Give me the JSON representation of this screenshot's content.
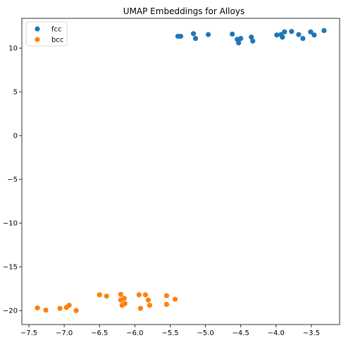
{
  "chart_data": {
    "type": "scatter",
    "title": "UMAP Embeddings for Alloys",
    "xlabel": "",
    "ylabel": "",
    "xlim": [
      -7.6,
      -3.1
    ],
    "ylim": [
      -21.6,
      13.4
    ],
    "xticks": [
      -7.5,
      -7.0,
      -6.5,
      -6.0,
      -5.5,
      -5.0,
      -4.5,
      -4.0,
      -3.5
    ],
    "xtick_labels": [
      "−7.5",
      "−7.0",
      "−6.5",
      "−6.0",
      "−5.5",
      "−5.0",
      "−4.5",
      "−4.0",
      "−3.5"
    ],
    "yticks": [
      10,
      5,
      0,
      -5,
      -10,
      -15,
      -20
    ],
    "ytick_labels": [
      "10",
      "5",
      "0",
      "−5",
      "−10",
      "−15",
      "−20"
    ],
    "grid": false,
    "legend_position": "top-left",
    "series": [
      {
        "name": "fcc",
        "color": "#1f77b4",
        "points": [
          [
            -5.39,
            11.35
          ],
          [
            -5.35,
            11.35
          ],
          [
            -5.17,
            11.65
          ],
          [
            -5.14,
            11.1
          ],
          [
            -4.96,
            11.55
          ],
          [
            -4.62,
            11.6
          ],
          [
            -4.55,
            11.0
          ],
          [
            -4.53,
            10.6
          ],
          [
            -4.5,
            11.1
          ],
          [
            -4.35,
            11.25
          ],
          [
            -4.33,
            10.8
          ],
          [
            -3.99,
            11.5
          ],
          [
            -3.93,
            11.55
          ],
          [
            -3.91,
            11.25
          ],
          [
            -3.88,
            11.85
          ],
          [
            -3.78,
            11.9
          ],
          [
            -3.68,
            11.55
          ],
          [
            -3.62,
            11.1
          ],
          [
            -3.51,
            11.85
          ],
          [
            -3.46,
            11.5
          ],
          [
            -3.32,
            12.0
          ]
        ]
      },
      {
        "name": "bcc",
        "color": "#ff7f0e",
        "points": [
          [
            -7.38,
            -19.7
          ],
          [
            -7.26,
            -19.95
          ],
          [
            -7.06,
            -19.75
          ],
          [
            -6.97,
            -19.65
          ],
          [
            -6.93,
            -19.4
          ],
          [
            -6.83,
            -20.0
          ],
          [
            -6.5,
            -18.2
          ],
          [
            -6.4,
            -18.35
          ],
          [
            -6.2,
            -18.15
          ],
          [
            -6.2,
            -18.8
          ],
          [
            -6.18,
            -19.4
          ],
          [
            -6.15,
            -18.6
          ],
          [
            -6.14,
            -19.2
          ],
          [
            -5.94,
            -18.2
          ],
          [
            -5.92,
            -19.75
          ],
          [
            -5.85,
            -18.2
          ],
          [
            -5.81,
            -18.8
          ],
          [
            -5.79,
            -19.4
          ],
          [
            -5.55,
            -18.3
          ],
          [
            -5.55,
            -19.3
          ],
          [
            -5.43,
            -18.7
          ]
        ]
      }
    ]
  }
}
